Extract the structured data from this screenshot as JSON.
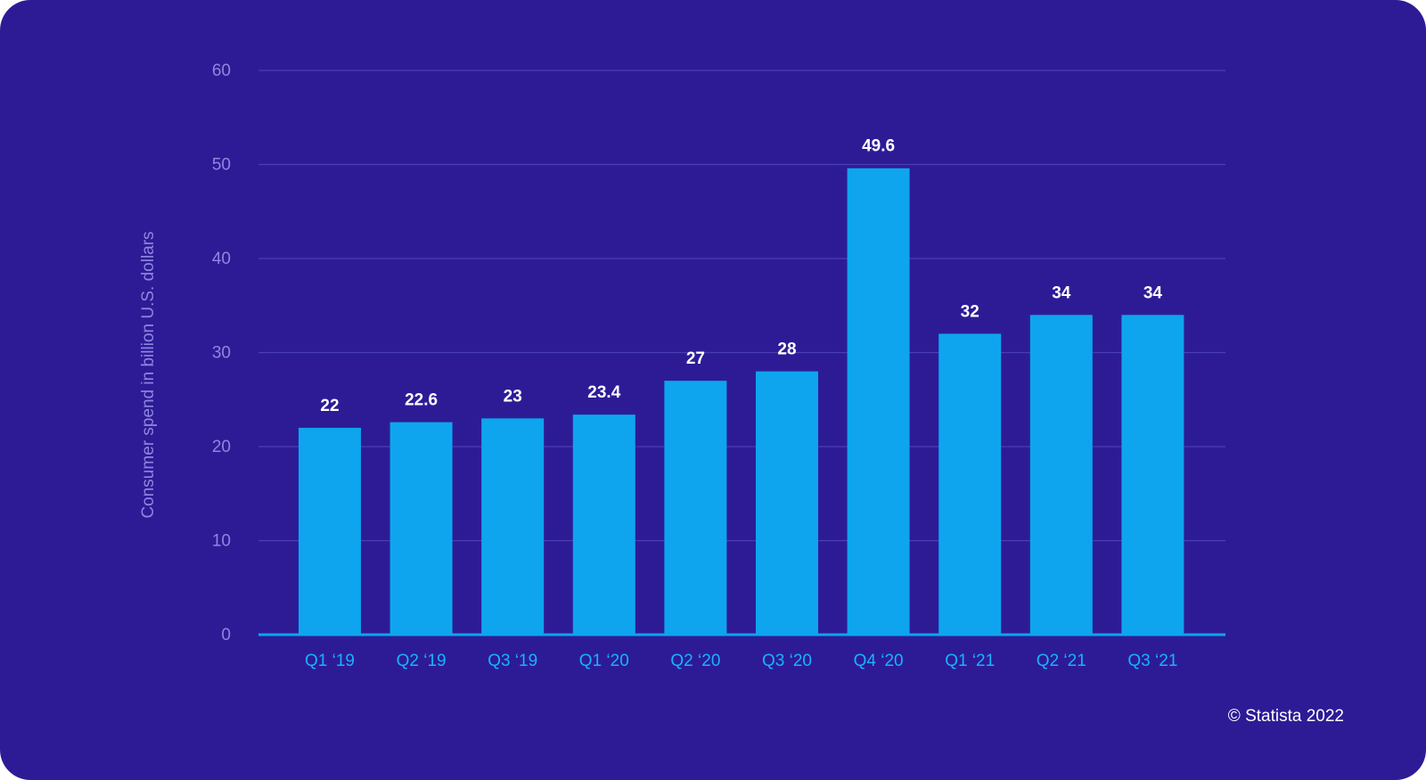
{
  "colors": {
    "background": "#2d1b96",
    "bar": "#0ea5ee",
    "grid": "#4a3fb0",
    "axis_text": "#8f86e0",
    "category_text": "#17b3ff",
    "value_label": "#ffffff"
  },
  "credit": "© Statista 2022",
  "chart_data": {
    "type": "bar",
    "title": "",
    "xlabel": "",
    "ylabel": "Consumer spend in billion U.S. dollars",
    "ylim": [
      0,
      60
    ],
    "yticks": [
      0,
      10,
      20,
      30,
      40,
      50,
      60
    ],
    "categories": [
      "Q1 ‘19",
      "Q2 ‘19",
      "Q3 ‘19",
      "Q1 ‘20",
      "Q2 ‘20",
      "Q3 ‘20",
      "Q4 ‘20",
      "Q1 ‘21",
      "Q2 ‘21",
      "Q3 ‘21"
    ],
    "values": [
      22,
      22.6,
      23,
      23.4,
      27,
      28,
      49.6,
      32,
      34,
      34
    ],
    "value_labels": [
      "22",
      "22.6",
      "23",
      "23.4",
      "27",
      "28",
      "49.6",
      "32",
      "34",
      "34"
    ],
    "grid": true,
    "legend": "none"
  }
}
